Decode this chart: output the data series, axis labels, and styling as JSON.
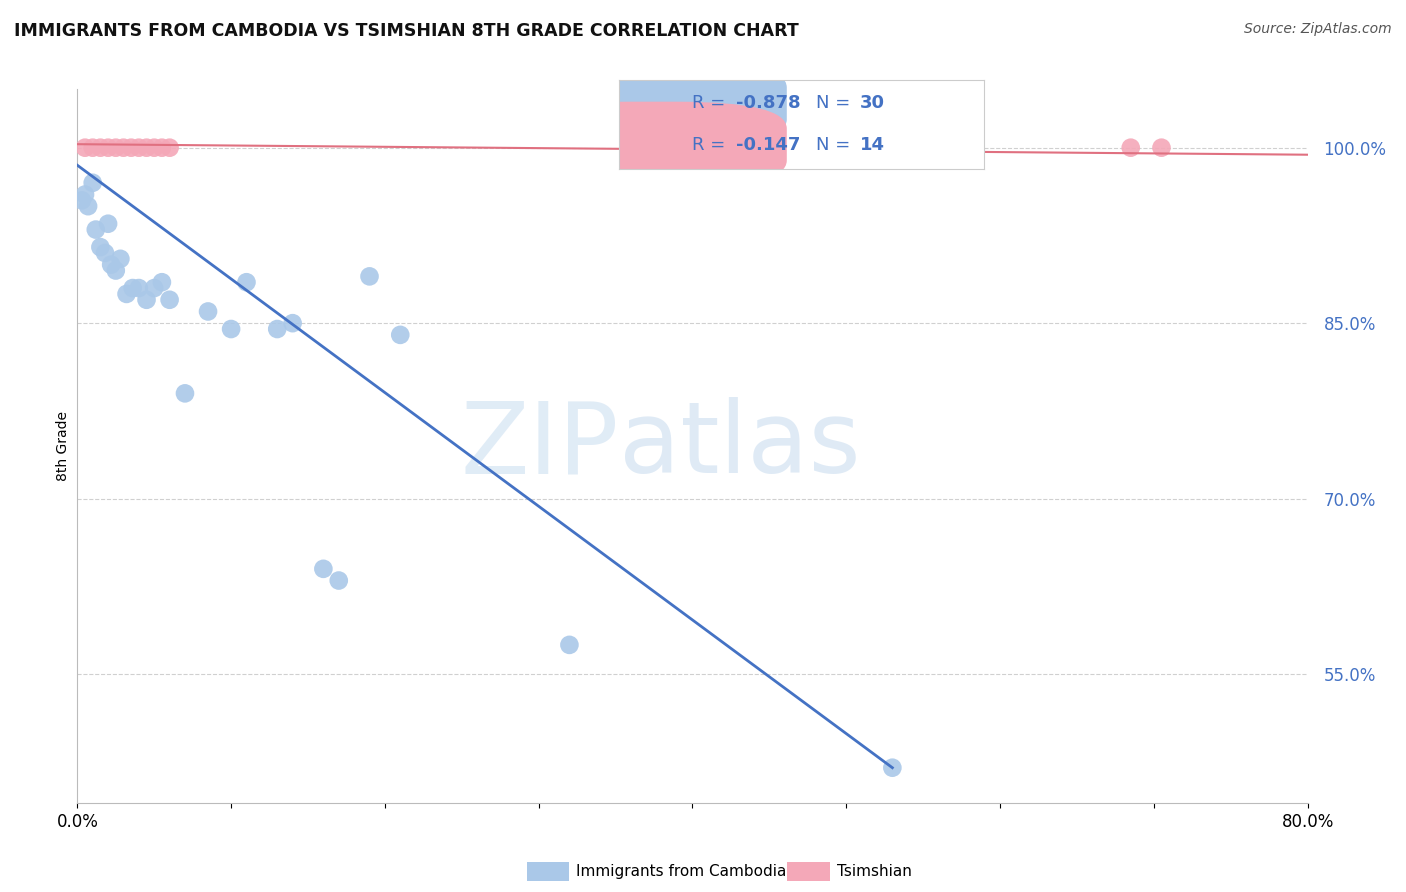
{
  "title": "IMMIGRANTS FROM CAMBODIA VS TSIMSHIAN 8TH GRADE CORRELATION CHART",
  "source": "Source: ZipAtlas.com",
  "ylabel": "8th Grade",
  "legend_label_blue": "Immigrants from Cambodia",
  "legend_label_pink": "Tsimshian",
  "blue_R": -0.878,
  "blue_N": 30,
  "pink_R": -0.147,
  "pink_N": 14,
  "blue_color": "#aac8e8",
  "blue_line_color": "#4472c4",
  "pink_color": "#f4a8b8",
  "pink_line_color": "#e07080",
  "blue_scatter_x": [
    0.3,
    0.5,
    0.7,
    1.0,
    1.2,
    1.5,
    1.8,
    2.0,
    2.2,
    2.5,
    2.8,
    3.2,
    3.6,
    4.0,
    4.5,
    5.0,
    5.5,
    6.0,
    7.0,
    8.5,
    10.0,
    11.0,
    13.0,
    14.0,
    16.0,
    17.0,
    19.0,
    21.0,
    32.0,
    53.0
  ],
  "blue_scatter_y": [
    95.5,
    96.0,
    95.0,
    97.0,
    93.0,
    91.5,
    91.0,
    93.5,
    90.0,
    89.5,
    90.5,
    87.5,
    88.0,
    88.0,
    87.0,
    88.0,
    88.5,
    87.0,
    79.0,
    86.0,
    84.5,
    88.5,
    84.5,
    85.0,
    64.0,
    63.0,
    89.0,
    84.0,
    57.5,
    47.0
  ],
  "pink_scatter_x": [
    0.5,
    1.0,
    1.5,
    2.0,
    2.5,
    3.0,
    3.5,
    4.0,
    4.5,
    5.0,
    5.5,
    6.0,
    68.5,
    70.5
  ],
  "pink_scatter_y": [
    100.0,
    100.0,
    100.0,
    100.0,
    100.0,
    100.0,
    100.0,
    100.0,
    100.0,
    100.0,
    100.0,
    100.0,
    100.0,
    100.0
  ],
  "xlim": [
    0.0,
    80.0
  ],
  "ylim": [
    44.0,
    105.0
  ],
  "yticks": [
    55.0,
    70.0,
    85.0,
    100.0
  ],
  "blue_line_x": [
    0.0,
    53.0
  ],
  "blue_line_y": [
    98.5,
    47.0
  ],
  "pink_line_x": [
    0.0,
    80.0
  ],
  "pink_line_y": [
    100.3,
    99.4
  ],
  "background_color": "#ffffff",
  "grid_color": "#d0d0d0",
  "tick_color": "#4472c4",
  "legend_text_color": "#4472c4",
  "legend_R_color": "#4472c4",
  "legend_N_color": "#4472c4"
}
